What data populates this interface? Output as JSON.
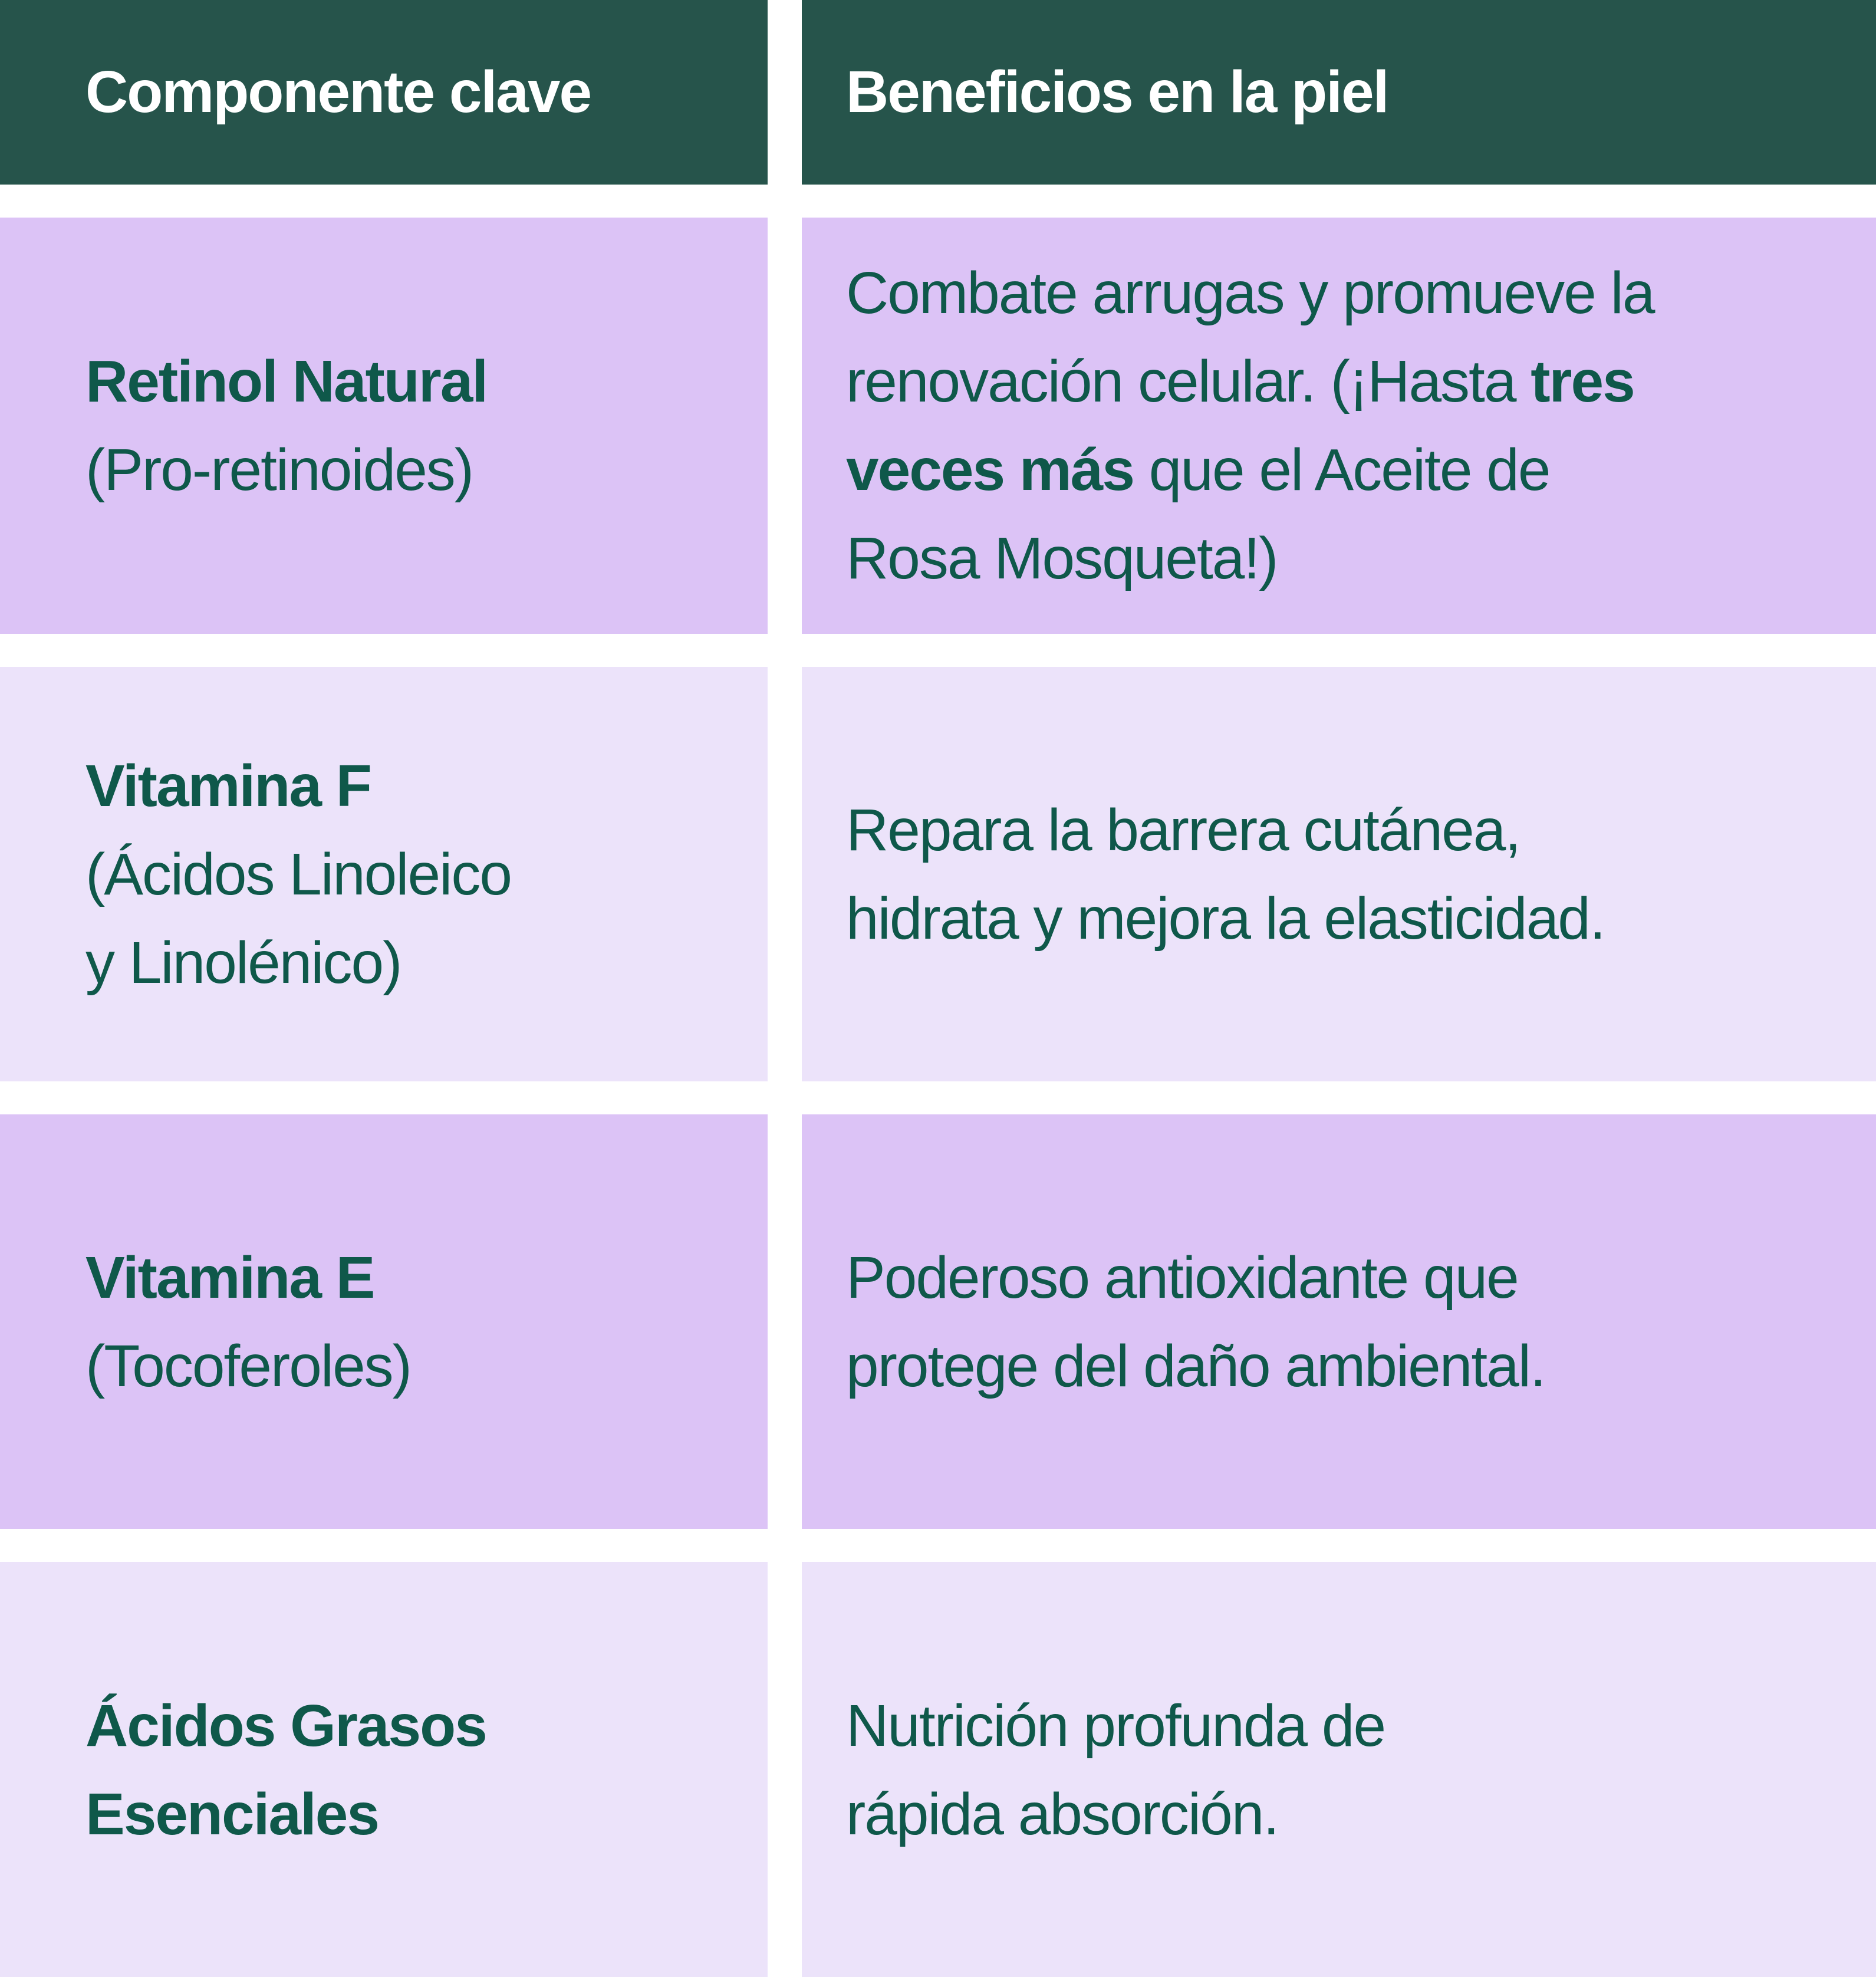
{
  "colors": {
    "header_bg": "#26544b",
    "header_text": "#ffffff",
    "cell_text": "#0f584a",
    "row_dark_lavender": "#dcc3f6",
    "row_light_lavender": "#ece3fa",
    "gap_white": "#ffffff"
  },
  "header": {
    "col1": "Componente clave",
    "col2": "Beneficios en la piel"
  },
  "rows": [
    {
      "component": [
        [
          {
            "text": "Retinol Natural",
            "bold": true
          }
        ],
        [
          {
            "text": "(Pro-retinoides)",
            "bold": false
          }
        ]
      ],
      "benefit": [
        [
          {
            "text": "Combate arrugas y promueve la",
            "bold": false
          }
        ],
        [
          {
            "text": "renovación celular. (¡Hasta ",
            "bold": false
          },
          {
            "text": "tres",
            "bold": true
          }
        ],
        [
          {
            "text": "veces más",
            "bold": true
          },
          {
            "text": " que el Aceite de",
            "bold": false
          }
        ],
        [
          {
            "text": "Rosa Mosqueta!)",
            "bold": false
          }
        ]
      ]
    },
    {
      "component": [
        [
          {
            "text": "Vitamina F",
            "bold": true
          }
        ],
        [
          {
            "text": "(Ácidos Linoleico",
            "bold": false
          }
        ],
        [
          {
            "text": "y Linolénico)",
            "bold": false
          }
        ]
      ],
      "benefit": [
        [
          {
            "text": "Repara la barrera cutánea,",
            "bold": false
          }
        ],
        [
          {
            "text": "hidrata y mejora la elasticidad.",
            "bold": false
          }
        ]
      ]
    },
    {
      "component": [
        [
          {
            "text": "Vitamina E",
            "bold": true
          }
        ],
        [
          {
            "text": "(Tocoferoles)",
            "bold": false
          }
        ]
      ],
      "benefit": [
        [
          {
            "text": "Poderoso antioxidante que",
            "bold": false
          }
        ],
        [
          {
            "text": "protege del daño ambiental.",
            "bold": false
          }
        ]
      ]
    },
    {
      "component": [
        [
          {
            "text": "Ácidos Grasos",
            "bold": true
          }
        ],
        [
          {
            "text": "Esenciales",
            "bold": true
          }
        ]
      ],
      "benefit": [
        [
          {
            "text": "Nutrición profunda de",
            "bold": false
          }
        ],
        [
          {
            "text": "rápida absorción.",
            "bold": false
          }
        ]
      ]
    }
  ]
}
